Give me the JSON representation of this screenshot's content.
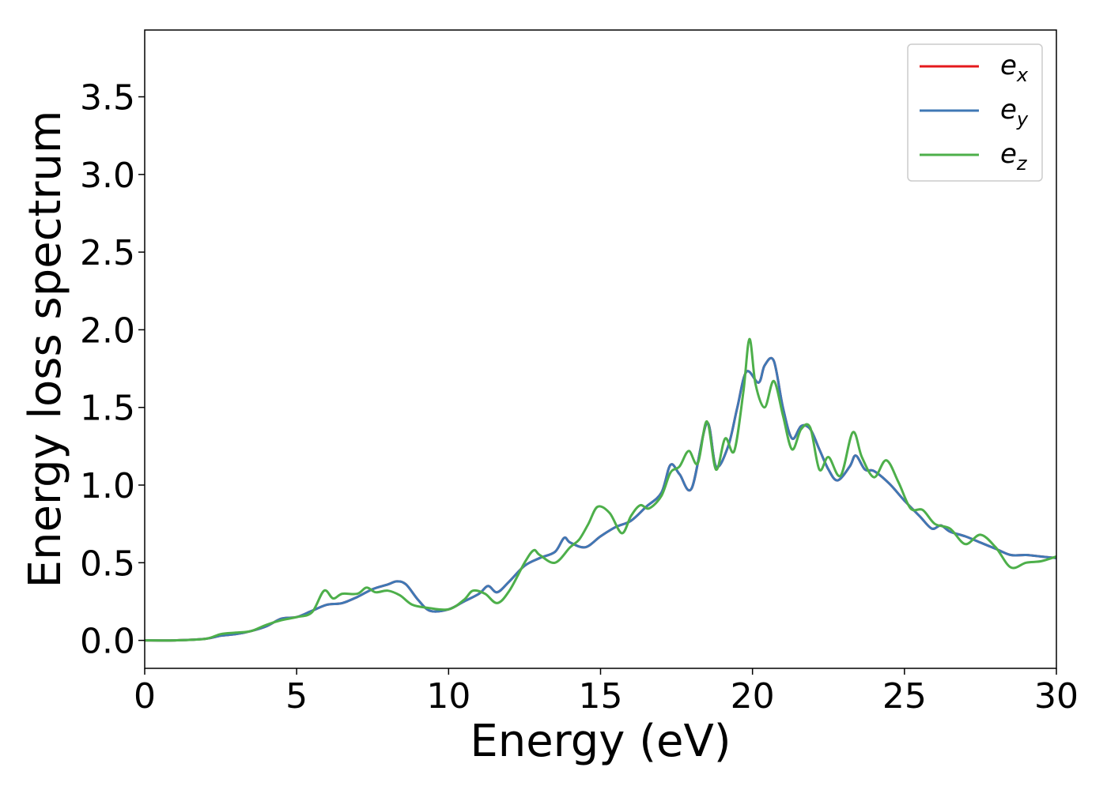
{
  "chart_data": {
    "type": "line",
    "xlabel": "Energy (eV)",
    "ylabel": "Energy loss spectrum",
    "xlim": [
      0,
      30
    ],
    "ylim": [
      -0.18,
      3.93
    ],
    "xticks": [
      0,
      5,
      10,
      15,
      20,
      25,
      30
    ],
    "xtick_labels": [
      "0",
      "5",
      "10",
      "15",
      "20",
      "25",
      "30"
    ],
    "yticks": [
      0.0,
      0.5,
      1.0,
      1.5,
      2.0,
      2.5,
      3.0,
      3.5
    ],
    "ytick_labels": [
      "0.0",
      "0.5",
      "1.0",
      "1.5",
      "2.0",
      "2.5",
      "3.0",
      "3.5"
    ],
    "grid": false,
    "legend_position": "top-right",
    "series": [
      {
        "name": "e",
        "subscript": "x",
        "color": "#e41a1c",
        "points": [
          [
            0,
            0
          ],
          [
            1,
            0
          ],
          [
            2,
            0.01
          ],
          [
            2.5,
            0.03
          ],
          [
            3,
            0.04
          ],
          [
            3.5,
            0.06
          ],
          [
            4,
            0.09
          ],
          [
            4.5,
            0.14
          ],
          [
            5,
            0.15
          ],
          [
            5.5,
            0.19
          ],
          [
            6,
            0.23
          ],
          [
            6.5,
            0.24
          ],
          [
            7,
            0.28
          ],
          [
            7.5,
            0.33
          ],
          [
            8,
            0.36
          ],
          [
            8.3,
            0.38
          ],
          [
            8.6,
            0.36
          ],
          [
            9,
            0.26
          ],
          [
            9.4,
            0.19
          ],
          [
            10,
            0.2
          ],
          [
            10.5,
            0.25
          ],
          [
            11,
            0.3
          ],
          [
            11.3,
            0.35
          ],
          [
            11.6,
            0.31
          ],
          [
            12,
            0.38
          ],
          [
            12.5,
            0.48
          ],
          [
            13,
            0.53
          ],
          [
            13.5,
            0.57
          ],
          [
            13.8,
            0.66
          ],
          [
            14,
            0.63
          ],
          [
            14.5,
            0.6
          ],
          [
            15,
            0.67
          ],
          [
            15.5,
            0.73
          ],
          [
            16,
            0.77
          ],
          [
            16.5,
            0.86
          ],
          [
            17,
            0.95
          ],
          [
            17.3,
            1.13
          ],
          [
            17.6,
            1.07
          ],
          [
            18,
            0.98
          ],
          [
            18.5,
            1.4
          ],
          [
            18.8,
            1.12
          ],
          [
            19.2,
            1.25
          ],
          [
            19.5,
            1.5
          ],
          [
            19.8,
            1.73
          ],
          [
            20.2,
            1.66
          ],
          [
            20.4,
            1.77
          ],
          [
            20.7,
            1.8
          ],
          [
            21,
            1.5
          ],
          [
            21.3,
            1.3
          ],
          [
            21.6,
            1.38
          ],
          [
            21.9,
            1.36
          ],
          [
            22.2,
            1.23
          ],
          [
            22.5,
            1.1
          ],
          [
            22.8,
            1.03
          ],
          [
            23.2,
            1.12
          ],
          [
            23.4,
            1.19
          ],
          [
            23.7,
            1.1
          ],
          [
            24,
            1.09
          ],
          [
            24.5,
            1.01
          ],
          [
            25,
            0.9
          ],
          [
            25.5,
            0.8
          ],
          [
            25.9,
            0.72
          ],
          [
            26.2,
            0.74
          ],
          [
            26.5,
            0.7
          ],
          [
            27,
            0.67
          ],
          [
            27.5,
            0.63
          ],
          [
            28,
            0.59
          ],
          [
            28.5,
            0.55
          ],
          [
            29,
            0.55
          ],
          [
            29.5,
            0.54
          ],
          [
            30,
            0.53
          ]
        ]
      },
      {
        "name": "e",
        "subscript": "y",
        "color": "#3f78b5",
        "points": [
          [
            0,
            0
          ],
          [
            1,
            0
          ],
          [
            2,
            0.01
          ],
          [
            2.5,
            0.03
          ],
          [
            3,
            0.04
          ],
          [
            3.5,
            0.06
          ],
          [
            4,
            0.09
          ],
          [
            4.5,
            0.14
          ],
          [
            5,
            0.15
          ],
          [
            5.5,
            0.19
          ],
          [
            6,
            0.23
          ],
          [
            6.5,
            0.24
          ],
          [
            7,
            0.28
          ],
          [
            7.5,
            0.33
          ],
          [
            8,
            0.36
          ],
          [
            8.3,
            0.38
          ],
          [
            8.6,
            0.36
          ],
          [
            9,
            0.26
          ],
          [
            9.4,
            0.19
          ],
          [
            10,
            0.2
          ],
          [
            10.5,
            0.25
          ],
          [
            11,
            0.3
          ],
          [
            11.3,
            0.35
          ],
          [
            11.6,
            0.31
          ],
          [
            12,
            0.38
          ],
          [
            12.5,
            0.48
          ],
          [
            13,
            0.53
          ],
          [
            13.5,
            0.57
          ],
          [
            13.8,
            0.66
          ],
          [
            14,
            0.63
          ],
          [
            14.5,
            0.6
          ],
          [
            15,
            0.67
          ],
          [
            15.5,
            0.73
          ],
          [
            16,
            0.77
          ],
          [
            16.5,
            0.86
          ],
          [
            17,
            0.95
          ],
          [
            17.3,
            1.13
          ],
          [
            17.6,
            1.07
          ],
          [
            18,
            0.98
          ],
          [
            18.5,
            1.4
          ],
          [
            18.8,
            1.12
          ],
          [
            19.2,
            1.25
          ],
          [
            19.5,
            1.5
          ],
          [
            19.8,
            1.73
          ],
          [
            20.2,
            1.66
          ],
          [
            20.4,
            1.77
          ],
          [
            20.7,
            1.8
          ],
          [
            21,
            1.5
          ],
          [
            21.3,
            1.3
          ],
          [
            21.6,
            1.38
          ],
          [
            21.9,
            1.36
          ],
          [
            22.2,
            1.23
          ],
          [
            22.5,
            1.1
          ],
          [
            22.8,
            1.03
          ],
          [
            23.2,
            1.12
          ],
          [
            23.4,
            1.19
          ],
          [
            23.7,
            1.1
          ],
          [
            24,
            1.09
          ],
          [
            24.5,
            1.01
          ],
          [
            25,
            0.9
          ],
          [
            25.5,
            0.8
          ],
          [
            25.9,
            0.72
          ],
          [
            26.2,
            0.74
          ],
          [
            26.5,
            0.7
          ],
          [
            27,
            0.67
          ],
          [
            27.5,
            0.63
          ],
          [
            28,
            0.59
          ],
          [
            28.5,
            0.55
          ],
          [
            29,
            0.55
          ],
          [
            29.5,
            0.54
          ],
          [
            30,
            0.53
          ]
        ]
      },
      {
        "name": "e",
        "subscript": "z",
        "color": "#4daf4a",
        "points": [
          [
            0,
            0
          ],
          [
            1,
            0
          ],
          [
            2,
            0.01
          ],
          [
            2.5,
            0.04
          ],
          [
            3,
            0.05
          ],
          [
            3.5,
            0.06
          ],
          [
            4,
            0.1
          ],
          [
            4.5,
            0.13
          ],
          [
            5,
            0.15
          ],
          [
            5.5,
            0.18
          ],
          [
            5.9,
            0.32
          ],
          [
            6.2,
            0.27
          ],
          [
            6.5,
            0.3
          ],
          [
            7,
            0.3
          ],
          [
            7.3,
            0.34
          ],
          [
            7.6,
            0.31
          ],
          [
            8,
            0.32
          ],
          [
            8.4,
            0.29
          ],
          [
            8.8,
            0.23
          ],
          [
            9.3,
            0.21
          ],
          [
            10,
            0.2
          ],
          [
            10.5,
            0.26
          ],
          [
            10.8,
            0.32
          ],
          [
            11.2,
            0.3
          ],
          [
            11.6,
            0.24
          ],
          [
            12,
            0.32
          ],
          [
            12.5,
            0.5
          ],
          [
            12.8,
            0.58
          ],
          [
            13,
            0.55
          ],
          [
            13.5,
            0.5
          ],
          [
            14,
            0.6
          ],
          [
            14.3,
            0.65
          ],
          [
            14.6,
            0.75
          ],
          [
            14.9,
            0.86
          ],
          [
            15.3,
            0.82
          ],
          [
            15.7,
            0.69
          ],
          [
            16,
            0.8
          ],
          [
            16.3,
            0.87
          ],
          [
            16.6,
            0.85
          ],
          [
            17,
            0.93
          ],
          [
            17.3,
            1.08
          ],
          [
            17.6,
            1.12
          ],
          [
            17.9,
            1.22
          ],
          [
            18.2,
            1.14
          ],
          [
            18.5,
            1.41
          ],
          [
            18.8,
            1.1
          ],
          [
            19.1,
            1.3
          ],
          [
            19.4,
            1.22
          ],
          [
            19.7,
            1.6
          ],
          [
            19.9,
            1.94
          ],
          [
            20.1,
            1.65
          ],
          [
            20.4,
            1.5
          ],
          [
            20.7,
            1.67
          ],
          [
            21,
            1.45
          ],
          [
            21.3,
            1.23
          ],
          [
            21.6,
            1.36
          ],
          [
            21.9,
            1.37
          ],
          [
            22.2,
            1.1
          ],
          [
            22.5,
            1.18
          ],
          [
            22.9,
            1.06
          ],
          [
            23.3,
            1.34
          ],
          [
            23.6,
            1.18
          ],
          [
            24,
            1.05
          ],
          [
            24.4,
            1.16
          ],
          [
            24.8,
            1.02
          ],
          [
            25.2,
            0.85
          ],
          [
            25.6,
            0.84
          ],
          [
            26,
            0.75
          ],
          [
            26.5,
            0.72
          ],
          [
            27,
            0.62
          ],
          [
            27.5,
            0.68
          ],
          [
            28,
            0.6
          ],
          [
            28.5,
            0.47
          ],
          [
            29,
            0.5
          ],
          [
            29.5,
            0.51
          ],
          [
            30,
            0.54
          ]
        ]
      }
    ]
  }
}
